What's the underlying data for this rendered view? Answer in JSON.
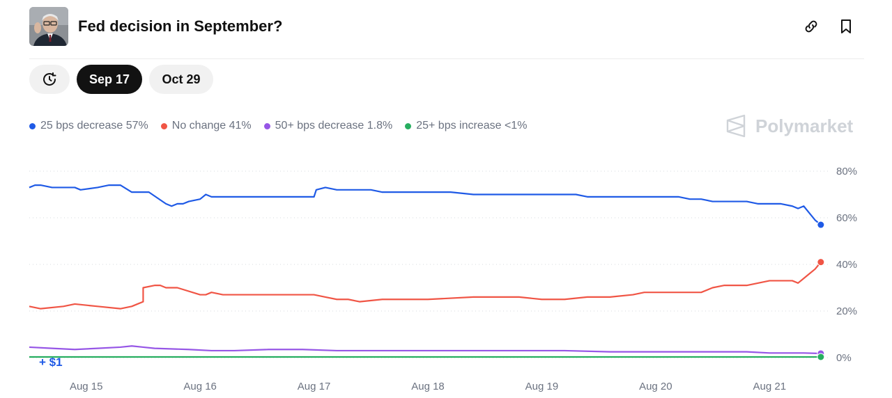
{
  "header": {
    "title": "Fed decision in September?"
  },
  "tabs": [
    {
      "label": "Sep 17",
      "active": true
    },
    {
      "label": "Oct 29",
      "active": false
    }
  ],
  "brand": {
    "name": "Polymarket"
  },
  "chart_data": {
    "type": "line",
    "title": "Fed decision in September?",
    "xlabel": "",
    "ylabel": "",
    "ylim": [
      0,
      80
    ],
    "yticks": [
      {
        "value": 80,
        "label": "80%"
      },
      {
        "value": 60,
        "label": "60%"
      },
      {
        "value": 40,
        "label": "40%"
      },
      {
        "value": 20,
        "label": "20%"
      },
      {
        "value": 0,
        "label": "0%"
      }
    ],
    "xlim": [
      14.5,
      21.5
    ],
    "xticks": [
      {
        "value": 15,
        "label": "Aug 15"
      },
      {
        "value": 16,
        "label": "Aug 16"
      },
      {
        "value": 17,
        "label": "Aug 17"
      },
      {
        "value": 18,
        "label": "Aug 18"
      },
      {
        "value": 19,
        "label": "Aug 19"
      },
      {
        "value": 20,
        "label": "Aug 20"
      },
      {
        "value": 21,
        "label": "Aug 21"
      }
    ],
    "annotation": "+ $1",
    "series": [
      {
        "name": "25 bps decrease",
        "legend": "25 bps decrease 57%",
        "color": "#1f5ae6",
        "x": [
          14.5,
          14.55,
          14.6,
          14.7,
          14.8,
          14.9,
          14.95,
          15.1,
          15.2,
          15.3,
          15.4,
          15.55,
          15.7,
          15.75,
          15.8,
          15.85,
          15.9,
          16.0,
          16.05,
          16.1,
          16.2,
          16.3,
          16.6,
          16.9,
          17.0,
          17.02,
          17.1,
          17.2,
          17.5,
          17.6,
          17.9,
          18.0,
          18.2,
          18.4,
          18.6,
          18.9,
          19.1,
          19.3,
          19.4,
          19.6,
          19.9,
          20.2,
          20.3,
          20.4,
          20.5,
          20.6,
          20.8,
          20.9,
          21.0,
          21.1,
          21.2,
          21.25,
          21.3,
          21.35,
          21.4,
          21.45
        ],
        "values": [
          73,
          74,
          74,
          73,
          73,
          73,
          72,
          73,
          74,
          74,
          71,
          71,
          66,
          65,
          66,
          66,
          67,
          68,
          70,
          69,
          69,
          69,
          69,
          69,
          69,
          72,
          73,
          72,
          72,
          71,
          71,
          71,
          71,
          70,
          70,
          70,
          70,
          70,
          69,
          69,
          69,
          69,
          68,
          68,
          67,
          67,
          67,
          66,
          66,
          66,
          65,
          64,
          65,
          62,
          59,
          57
        ]
      },
      {
        "name": "No change",
        "legend": "No change 41%",
        "color": "#f05545",
        "x": [
          14.5,
          14.6,
          14.8,
          14.9,
          15.1,
          15.3,
          15.4,
          15.45,
          15.5,
          15.5,
          15.6,
          15.65,
          15.7,
          15.8,
          16.0,
          16.05,
          16.1,
          16.2,
          16.3,
          16.5,
          17.0,
          17.1,
          17.2,
          17.3,
          17.4,
          17.6,
          17.8,
          18.0,
          18.4,
          18.6,
          18.8,
          19.0,
          19.1,
          19.2,
          19.4,
          19.6,
          19.8,
          19.9,
          20.0,
          20.3,
          20.4,
          20.5,
          20.6,
          20.8,
          20.9,
          21.0,
          21.1,
          21.2,
          21.25,
          21.3,
          21.35,
          21.4,
          21.45
        ],
        "values": [
          22,
          21,
          22,
          23,
          22,
          21,
          22,
          23,
          24,
          30,
          31,
          31,
          30,
          30,
          27,
          27,
          28,
          27,
          27,
          27,
          27,
          26,
          25,
          25,
          24,
          25,
          25,
          25,
          26,
          26,
          26,
          25,
          25,
          25,
          26,
          26,
          27,
          28,
          28,
          28,
          28,
          30,
          31,
          31,
          32,
          33,
          33,
          33,
          32,
          34,
          36,
          38,
          41
        ]
      },
      {
        "name": "50+ bps decrease",
        "legend": "50+ bps decrease 1.8%",
        "color": "#9656e6",
        "x": [
          14.5,
          14.7,
          14.9,
          15.1,
          15.3,
          15.4,
          15.5,
          15.6,
          15.9,
          16.1,
          16.3,
          16.6,
          16.9,
          17.2,
          17.6,
          18.0,
          18.4,
          18.8,
          19.2,
          19.6,
          20.0,
          20.4,
          20.8,
          21.0,
          21.2,
          21.3,
          21.45
        ],
        "values": [
          4.5,
          4,
          3.5,
          4,
          4.5,
          5,
          4.5,
          4,
          3.5,
          3,
          3,
          3.5,
          3.5,
          3,
          3,
          3,
          3,
          3,
          3,
          2.5,
          2.5,
          2.5,
          2.5,
          2,
          2,
          2,
          1.8
        ]
      },
      {
        "name": "25+ bps increase",
        "legend": "25+ bps increase <1%",
        "color": "#27ae60",
        "x": [
          14.5,
          21.45
        ],
        "values": [
          0.3,
          0.3
        ]
      }
    ]
  }
}
